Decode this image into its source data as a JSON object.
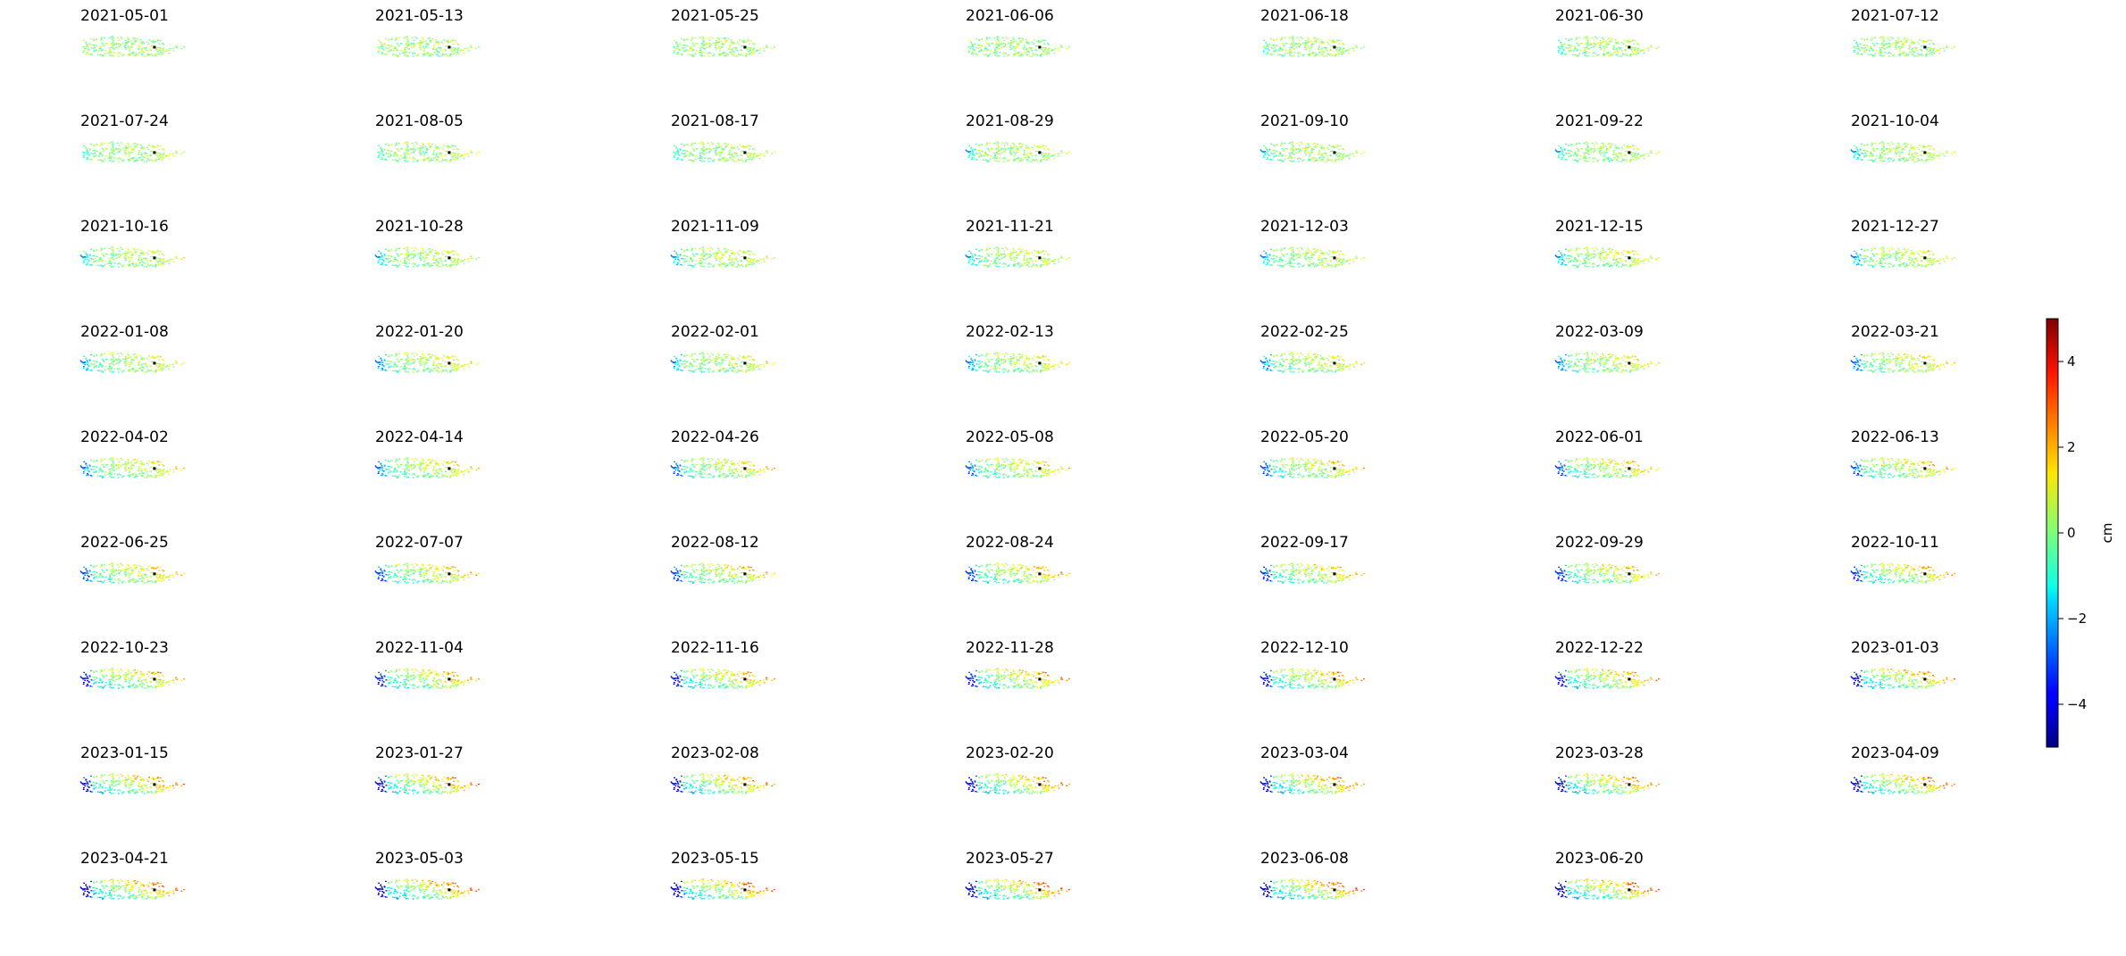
{
  "figure": {
    "colorbar_label": "cm",
    "colormap": "jet",
    "vmin": -5,
    "vmax": 5,
    "colorbar_ticks": [
      "4",
      "2",
      "0",
      "−2",
      "−4"
    ]
  },
  "chart_data": {
    "type": "heatmap",
    "description_kind": "small multiples of point displacement maps",
    "dates": [
      "2021-05-01",
      "2021-05-13",
      "2021-05-25",
      "2021-06-06",
      "2021-06-18",
      "2021-06-30",
      "2021-07-12",
      "2021-07-24",
      "2021-08-05",
      "2021-08-17",
      "2021-08-29",
      "2021-09-10",
      "2021-09-22",
      "2021-10-04",
      "2021-10-16",
      "2021-10-28",
      "2021-11-09",
      "2021-11-21",
      "2021-12-03",
      "2021-12-15",
      "2021-12-27",
      "2022-01-08",
      "2022-01-20",
      "2022-02-01",
      "2022-02-13",
      "2022-02-25",
      "2022-03-09",
      "2022-03-21",
      "2022-04-02",
      "2022-04-14",
      "2022-04-26",
      "2022-05-08",
      "2022-05-20",
      "2022-06-01",
      "2022-06-13",
      "2022-06-25",
      "2022-07-07",
      "2022-08-12",
      "2022-08-24",
      "2022-09-17",
      "2022-09-29",
      "2022-10-11",
      "2022-10-23",
      "2022-11-04",
      "2022-11-16",
      "2022-11-28",
      "2022-12-10",
      "2022-12-22",
      "2023-01-03",
      "2023-01-15",
      "2023-01-27",
      "2023-02-08",
      "2023-02-20",
      "2023-03-04",
      "2023-03-28",
      "2023-04-09",
      "2023-04-21",
      "2023-05-03",
      "2023-05-15",
      "2023-05-27",
      "2023-06-08",
      "2023-06-20"
    ],
    "displacement_range_cm": [
      -5,
      5
    ],
    "reference_point_marked": true
  }
}
